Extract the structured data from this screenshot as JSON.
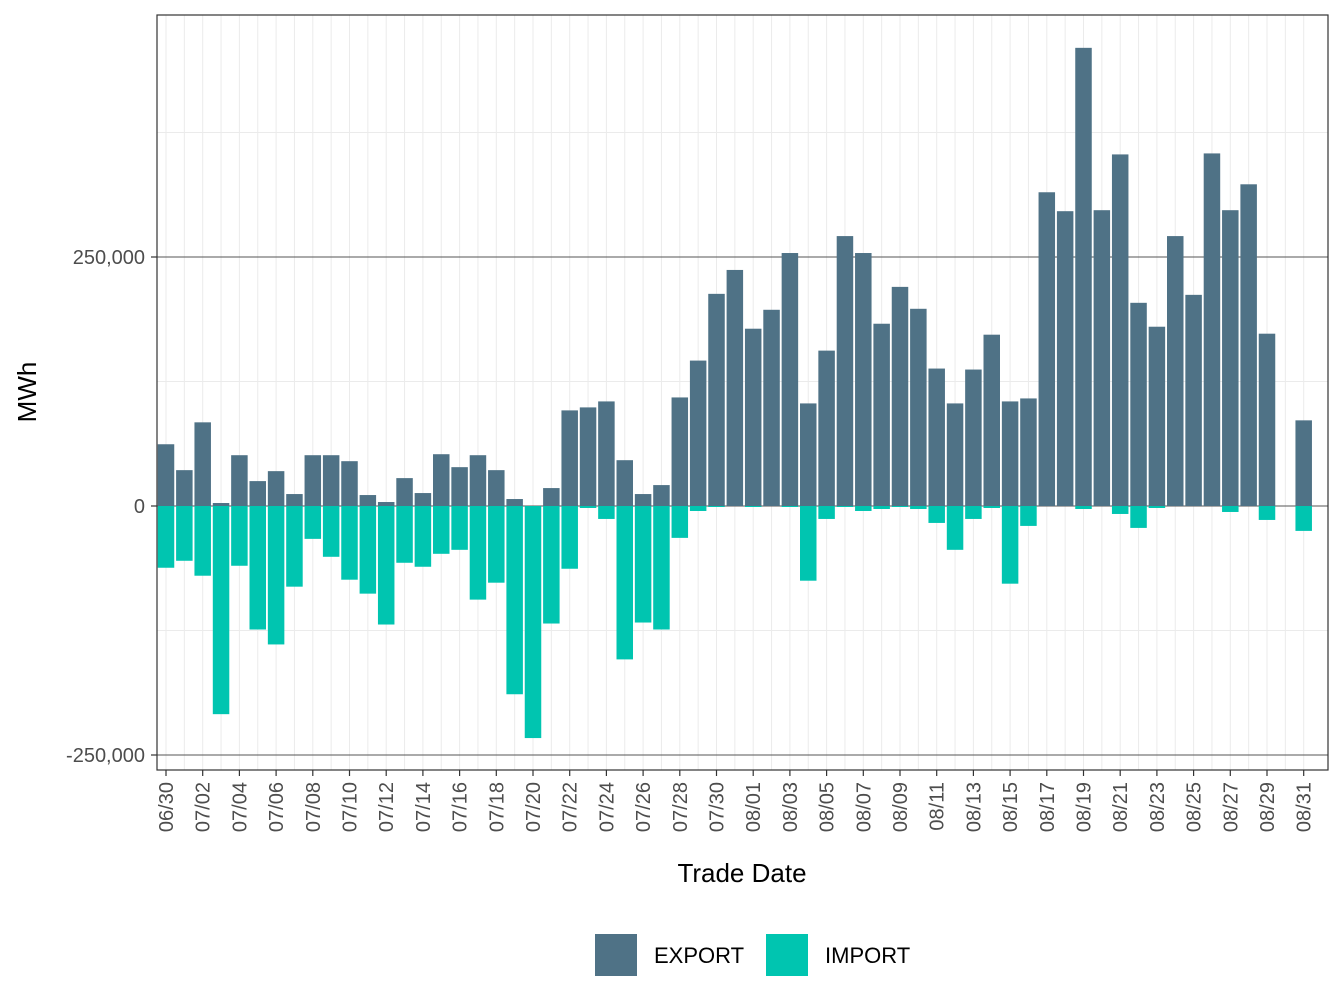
{
  "chart_data": {
    "type": "bar",
    "stacked": "diverging",
    "xlabel": "Trade Date",
    "ylabel": "MWh",
    "ylim": [
      -262000,
      492000
    ],
    "yticks": [
      -250000,
      0,
      250000
    ],
    "ytick_labels": [
      "-250,000",
      "0",
      "250,000"
    ],
    "grid": true,
    "legend_position": "bottom",
    "categories": [
      "06/30",
      "07/01",
      "07/02",
      "07/03",
      "07/04",
      "07/05",
      "07/06",
      "07/07",
      "07/08",
      "07/09",
      "07/10",
      "07/11",
      "07/12",
      "07/13",
      "07/14",
      "07/15",
      "07/16",
      "07/17",
      "07/18",
      "07/19",
      "07/20",
      "07/21",
      "07/22",
      "07/23",
      "07/24",
      "07/25",
      "07/26",
      "07/27",
      "07/28",
      "07/29",
      "07/30",
      "07/31",
      "08/01",
      "08/02",
      "08/03",
      "08/04",
      "08/05",
      "08/06",
      "08/07",
      "08/08",
      "08/09",
      "08/10",
      "08/11",
      "08/12",
      "08/13",
      "08/14",
      "08/15",
      "08/16",
      "08/17",
      "08/18",
      "08/19",
      "08/20",
      "08/21",
      "08/22",
      "08/23",
      "08/24",
      "08/25",
      "08/26",
      "08/27",
      "08/28",
      "08/29",
      "08/30",
      "08/31"
    ],
    "xtick_labels": [
      "06/30",
      "07/02",
      "07/04",
      "07/06",
      "07/08",
      "07/10",
      "07/12",
      "07/14",
      "07/16",
      "07/18",
      "07/20",
      "07/22",
      "07/24",
      "07/26",
      "07/28",
      "07/30",
      "08/01",
      "08/03",
      "08/05",
      "08/07",
      "08/09",
      "08/11",
      "08/13",
      "08/15",
      "08/17",
      "08/19",
      "08/21",
      "08/23",
      "08/25",
      "08/27",
      "08/29",
      "08/31"
    ],
    "series": [
      {
        "name": "EXPORT",
        "color": "#4f7286",
        "values": [
          62000,
          36000,
          84000,
          3000,
          51000,
          25000,
          35000,
          12000,
          51000,
          51000,
          45000,
          11000,
          4000,
          28000,
          13000,
          52000,
          39000,
          51000,
          36000,
          7000,
          0,
          18000,
          96000,
          99000,
          105000,
          46000,
          12000,
          21000,
          109000,
          146000,
          213000,
          237000,
          178000,
          197000,
          254000,
          103000,
          156000,
          271000,
          254000,
          183000,
          220000,
          198000,
          138000,
          103000,
          137000,
          172000,
          105000,
          108000,
          315000,
          296000,
          460000,
          297000,
          353000,
          204000,
          180000,
          271000,
          212000,
          354000,
          297000,
          323000,
          173000,
          0,
          86000
        ]
      },
      {
        "name": "IMPORT",
        "color": "#00c5b0",
        "values": [
          -62000,
          -55000,
          -70000,
          -209000,
          -60000,
          -124000,
          -139000,
          -81000,
          -33000,
          -51000,
          -74000,
          -88000,
          -119000,
          -57000,
          -61000,
          -48000,
          -44000,
          -94000,
          -77000,
          -189000,
          -233000,
          -118000,
          -63000,
          -2000,
          -13000,
          -154000,
          -117000,
          -124000,
          -32000,
          -5000,
          -1000,
          0,
          -1000,
          0,
          -1000,
          -75000,
          -13000,
          -1000,
          -5000,
          -3000,
          -1000,
          -3000,
          -17000,
          -44000,
          -13000,
          -2000,
          -78000,
          -20000,
          0,
          0,
          -3000,
          0,
          -8000,
          -22000,
          -2000,
          0,
          0,
          0,
          -6000,
          0,
          -14000,
          0,
          -25000
        ]
      }
    ]
  }
}
